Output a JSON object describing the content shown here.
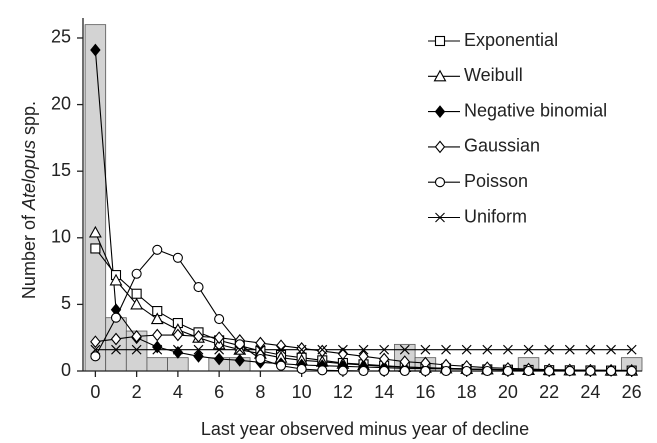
{
  "chart_data": {
    "type": "histogram-lines",
    "xlabel": "Last year observed minus year of decline",
    "ylabel": [
      "Number of ",
      "Atelopus",
      " spp."
    ],
    "xlim": [
      -0.6,
      26.5
    ],
    "ylim": [
      0,
      26.5
    ],
    "xticks": [
      0,
      2,
      4,
      6,
      8,
      10,
      12,
      14,
      16,
      18,
      20,
      22,
      24,
      26
    ],
    "yticks": [
      0,
      5,
      10,
      15,
      20,
      25
    ],
    "legend": "top-right",
    "histogram": {
      "color": "#d3d3d3",
      "bins": [
        -0.5,
        0.5,
        1.5,
        2.5,
        3.5,
        4.5,
        5.5,
        6.5,
        7.5,
        8.5,
        9.5,
        10.5,
        11.5,
        12.5,
        13.5,
        14.5,
        15.5,
        16.5,
        17.5,
        18.5,
        19.5,
        20.5,
        21.5,
        22.5,
        23.5,
        24.5,
        25.5,
        26.5
      ],
      "counts": [
        26,
        4,
        3,
        1,
        1,
        0,
        1,
        1,
        0,
        0,
        0,
        0,
        0,
        0,
        0,
        2,
        1,
        0,
        0,
        0,
        0,
        1,
        0,
        0,
        0,
        0,
        1
      ]
    },
    "x": [
      0,
      1,
      2,
      3,
      4,
      5,
      6,
      7,
      8,
      9,
      10,
      11,
      12,
      13,
      14,
      15,
      16,
      17,
      18,
      19,
      20,
      21,
      22,
      23,
      24,
      25,
      26
    ],
    "series": [
      {
        "name": "Exponential",
        "color": "#000000",
        "marker": "square",
        "values": [
          9.2,
          7.2,
          5.8,
          4.5,
          3.6,
          2.9,
          2.3,
          1.9,
          1.5,
          1.2,
          1.0,
          0.8,
          0.6,
          0.5,
          0.4,
          0.3,
          0.25,
          0.2,
          0.15,
          0.12,
          0.1,
          0.08,
          0.06,
          0.05,
          0.04,
          0.03,
          0.03
        ]
      },
      {
        "name": "Weibull",
        "color": "#000000",
        "marker": "triangle",
        "values": [
          10.4,
          6.8,
          5.0,
          3.9,
          3.1,
          2.5,
          2.0,
          1.6,
          1.3,
          1.0,
          0.8,
          0.7,
          0.55,
          0.45,
          0.35,
          0.3,
          0.24,
          0.2,
          0.16,
          0.13,
          0.1,
          0.08,
          0.07,
          0.05,
          0.04,
          0.03,
          0.03
        ]
      },
      {
        "name": "Negative binomial",
        "color": "#000000",
        "marker": "diamond-filled",
        "values": [
          24.1,
          4.6,
          2.5,
          1.8,
          1.4,
          1.1,
          0.9,
          0.8,
          0.65,
          0.55,
          0.45,
          0.4,
          0.35,
          0.3,
          0.25,
          0.2,
          0.18,
          0.15,
          0.13,
          0.11,
          0.1,
          0.08,
          0.07,
          0.06,
          0.05,
          0.05,
          0.04
        ]
      },
      {
        "name": "Gaussian",
        "color": "#000000",
        "marker": "diamond",
        "values": [
          2.2,
          2.4,
          2.6,
          2.7,
          2.7,
          2.6,
          2.5,
          2.3,
          2.1,
          1.9,
          1.7,
          1.5,
          1.3,
          1.1,
          0.9,
          0.7,
          0.6,
          0.45,
          0.35,
          0.25,
          0.2,
          0.15,
          0.1,
          0.08,
          0.05,
          0.04,
          0.03
        ]
      },
      {
        "name": "Poisson",
        "color": "#000000",
        "marker": "circle",
        "values": [
          1.1,
          4.0,
          7.3,
          9.1,
          8.5,
          6.3,
          3.9,
          2.0,
          0.9,
          0.4,
          0.15,
          0.05,
          0.02,
          0,
          0,
          0,
          0,
          0,
          0,
          0,
          0,
          0,
          0,
          0,
          0,
          0,
          0
        ]
      },
      {
        "name": "Uniform",
        "color": "#000000",
        "marker": "x",
        "values": [
          1.6,
          1.6,
          1.6,
          1.6,
          1.6,
          1.6,
          1.6,
          1.6,
          1.6,
          1.6,
          1.6,
          1.6,
          1.6,
          1.6,
          1.6,
          1.6,
          1.6,
          1.6,
          1.6,
          1.6,
          1.6,
          1.6,
          1.6,
          1.6,
          1.6,
          1.6,
          1.6
        ]
      }
    ]
  }
}
